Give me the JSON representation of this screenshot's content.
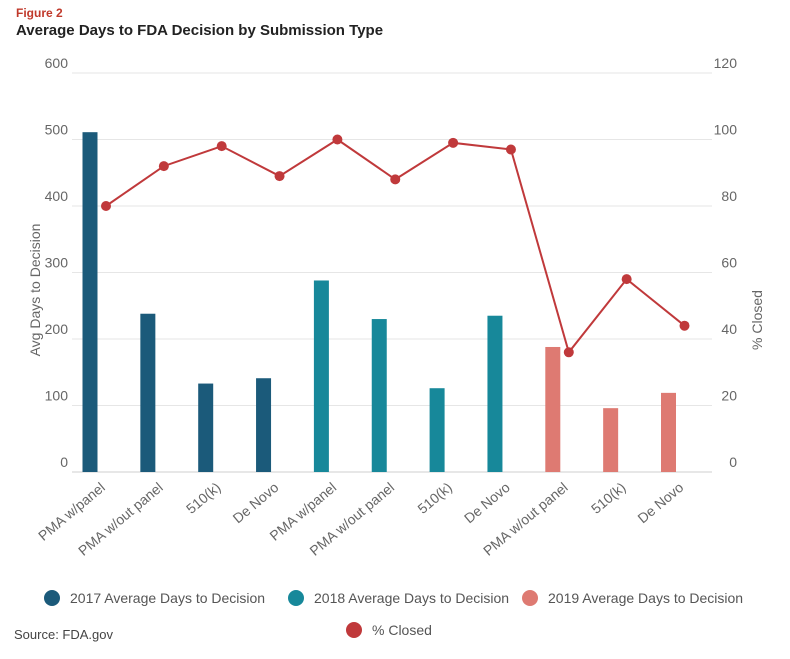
{
  "figure_label": "Figure 2",
  "title": "Average Days to FDA Decision by Submission Type",
  "source": "Source: FDA.gov",
  "chart_data": {
    "type": "bar",
    "categories": [
      "PMA w/panel",
      "PMA w/out panel",
      "510(k)",
      "De Novo",
      "PMA w/panel",
      "PMA w/out panel",
      "510(k)",
      "De Novo",
      "PMA w/out panel",
      "510(k)",
      "De Novo"
    ],
    "groups": [
      0,
      0,
      0,
      0,
      1,
      1,
      1,
      1,
      2,
      2,
      2
    ],
    "bar_values": [
      511,
      238,
      133,
      141,
      288,
      230,
      126,
      235,
      188,
      96,
      119
    ],
    "line_values": [
      80,
      92,
      98,
      89,
      100,
      88,
      99,
      97,
      36,
      58,
      44
    ],
    "series": [
      {
        "name": "2017 Average Days to Decision",
        "color": "#1b5a7a"
      },
      {
        "name": "2018 Average Days to Decision",
        "color": "#17889a"
      },
      {
        "name": "2019 Average Days to Decision",
        "color": "#de7a72"
      },
      {
        "name": "% Closed",
        "color": "#c0393b",
        "type": "line"
      }
    ],
    "ylabel": "Avg Days to Decision",
    "ylabel_right": "% Closed",
    "ylim": [
      0,
      600
    ],
    "ylim_right": [
      0,
      120
    ],
    "yticks": [
      "0",
      "100",
      "200",
      "300",
      "400",
      "500",
      "600"
    ],
    "yticks_right": [
      "0",
      "20",
      "40",
      "60",
      "80",
      "100",
      "120"
    ],
    "grid": true,
    "legend_position": "bottom"
  }
}
